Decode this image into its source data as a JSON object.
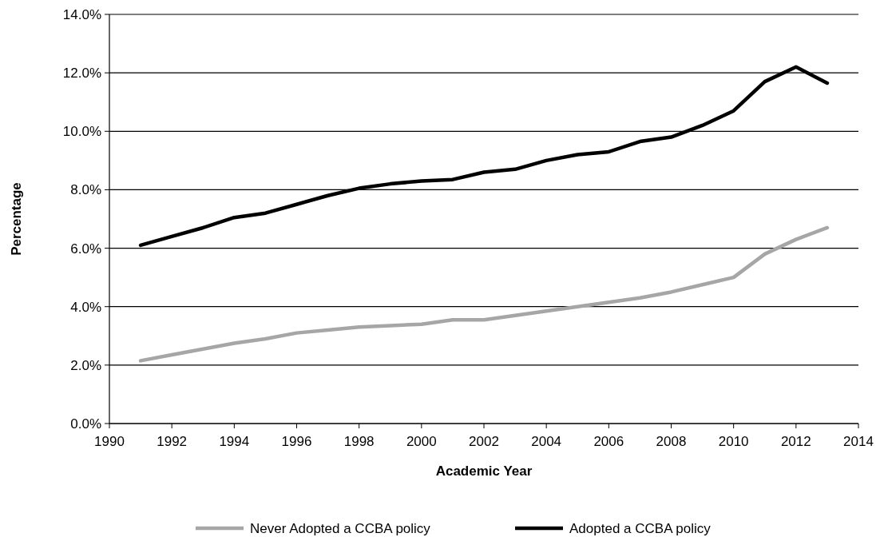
{
  "chart_data": {
    "type": "line",
    "xlabel": "Academic Year",
    "ylabel": "Percentage",
    "x": [
      1991,
      1992,
      1993,
      1994,
      1995,
      1996,
      1997,
      1998,
      1999,
      2000,
      2001,
      2002,
      2003,
      2004,
      2005,
      2006,
      2007,
      2008,
      2009,
      2010,
      2011,
      2012,
      2013
    ],
    "series": [
      {
        "name": "Never Adopted a CCBA policy",
        "color": "#a6a6a6",
        "values": [
          2.15,
          2.35,
          2.55,
          2.75,
          2.9,
          3.1,
          3.2,
          3.3,
          3.35,
          3.4,
          3.55,
          3.55,
          3.7,
          3.85,
          4.0,
          4.15,
          4.3,
          4.5,
          4.75,
          5.0,
          5.8,
          6.3,
          6.7
        ]
      },
      {
        "name": "Adopted a CCBA policy",
        "color": "#000000",
        "values": [
          6.1,
          6.4,
          6.7,
          7.05,
          7.2,
          7.5,
          7.8,
          8.05,
          8.2,
          8.3,
          8.35,
          8.6,
          8.7,
          9.0,
          9.2,
          9.3,
          9.65,
          9.8,
          10.2,
          10.7,
          11.7,
          12.2,
          11.65
        ]
      }
    ],
    "xlim": [
      1990,
      2014
    ],
    "xticks": [
      1990,
      1992,
      1994,
      1996,
      1998,
      2000,
      2002,
      2004,
      2006,
      2008,
      2010,
      2012,
      2014
    ],
    "ylim": [
      0,
      14
    ],
    "yticks": [
      {
        "value": 0,
        "label": "0.0%"
      },
      {
        "value": 2,
        "label": "2.0%"
      },
      {
        "value": 4,
        "label": "4.0%"
      },
      {
        "value": 6,
        "label": "6.0%"
      },
      {
        "value": 8,
        "label": "8.0%"
      },
      {
        "value": 10,
        "label": "10.0%"
      },
      {
        "value": 12,
        "label": "12.0%"
      },
      {
        "value": 14,
        "label": "14.0%"
      }
    ],
    "grid": "y",
    "legend": "bottom",
    "marker": "none",
    "line_style": "solid"
  }
}
